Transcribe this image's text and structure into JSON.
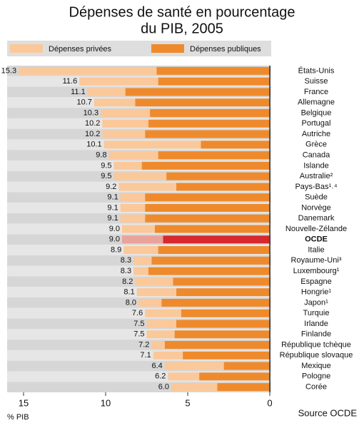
{
  "chart_data": {
    "type": "stacked_barh",
    "title": [
      "Dépenses de santé en pourcentage",
      "du PIB, 2005"
    ],
    "x_label": "% PIB",
    "source": "Source OCDE",
    "categories": [
      "États-Unis",
      "Suisse",
      "France",
      "Allemagne",
      "Belgique",
      "Portugal",
      "Autriche",
      "Grèce",
      "Canada",
      "Islande",
      "Australie²",
      "Pays-Bas¹˒⁴",
      "Suède",
      "Norvège",
      "Danemark",
      "Nouvelle-Zélande",
      "OCDE",
      "Italie",
      "Royaume-Uni³",
      "Luxembourg¹",
      "Espagne",
      "Hongrie¹",
      "Japon¹",
      "Turquie",
      "Irlande",
      "Finlande",
      "République tchèque",
      "République slovaque",
      "Mexique",
      "Pologne",
      "Corée"
    ],
    "series": [
      {
        "name": "Dépenses publiques",
        "color": "#ef8a2c",
        "values": [
          6.9,
          6.8,
          8.8,
          8.2,
          7.3,
          7.4,
          7.6,
          4.2,
          6.8,
          7.8,
          6.3,
          5.7,
          7.6,
          7.6,
          7.6,
          7.0,
          6.5,
          6.8,
          7.2,
          7.4,
          5.9,
          5.7,
          6.6,
          5.4,
          5.7,
          5.8,
          6.4,
          5.3,
          2.8,
          4.3,
          3.2
        ]
      },
      {
        "name": "Dépenses privées",
        "color": "#fbc89a",
        "values": [
          8.4,
          4.8,
          2.3,
          2.5,
          3.0,
          2.8,
          2.6,
          5.9,
          3.0,
          1.7,
          3.2,
          3.5,
          1.5,
          1.5,
          1.5,
          2.0,
          2.5,
          2.1,
          1.1,
          0.9,
          2.3,
          2.4,
          1.4,
          2.2,
          1.8,
          1.7,
          0.8,
          1.8,
          3.6,
          1.9,
          2.8
        ]
      }
    ],
    "value_labels": [
      "15.3",
      "11.6",
      "11.1",
      "10.7",
      "10.3",
      "10.2",
      "10.2",
      "10.1",
      "9.8",
      "9.5",
      "9.5",
      "9.2",
      "9.1",
      "9.1",
      "9.1",
      "9.0",
      "9.0",
      "8.9",
      "8.3",
      "8.3",
      "8.2",
      "8.1",
      "8.0",
      "7.6",
      "7.5",
      "7.5",
      "7.2",
      "7.1",
      "6.4",
      "6.2",
      "6.0"
    ],
    "highlight": {
      "category": "OCDE",
      "colors": [
        "#d7282f",
        "#e9a39b"
      ]
    },
    "xlim": [
      16,
      0
    ],
    "xticks": [
      15,
      10,
      5,
      0
    ]
  }
}
